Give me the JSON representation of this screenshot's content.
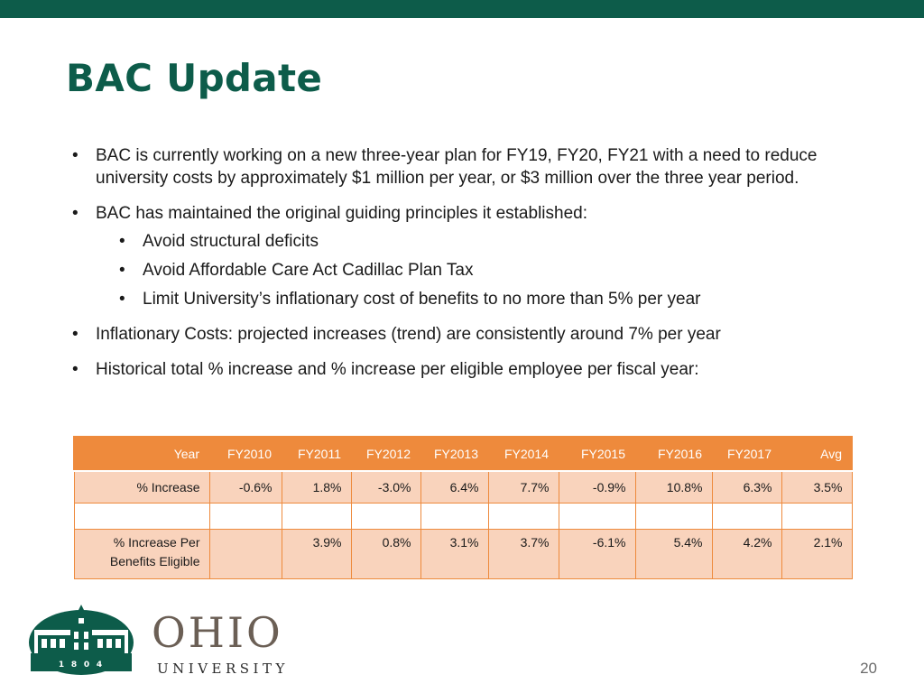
{
  "slide": {
    "title": "BAC Update",
    "page_number": "20",
    "brand_color": "#0d5c4a",
    "accent_color": "#ee8a3c"
  },
  "bullets": [
    "BAC is currently working on a new three-year plan for FY19, FY20, FY21 with a need to reduce university costs by approximately $1 million per year, or $3 million over the three year period.",
    "BAC has maintained the original guiding principles it established:",
    "Inflationary Costs: projected increases (trend) are consistently around 7% per year",
    "Historical total % increase and % increase per eligible employee per fiscal year:"
  ],
  "sub_bullets": [
    "Avoid structural deficits",
    "Avoid Affordable Care Act Cadillac Plan Tax",
    "Limit University’s inflationary cost of benefits to no more than 5% per year"
  ],
  "table": {
    "headers": [
      "Year",
      "FY2010",
      "FY2011",
      "FY2012",
      "FY2013",
      "FY2014",
      "FY2015",
      "FY2016",
      "FY2017",
      "Avg"
    ],
    "row_increase": [
      "% Increase",
      "-0.6%",
      "1.8%",
      "-3.0%",
      "6.4%",
      "7.7%",
      "-0.9%",
      "10.8%",
      "6.3%",
      "3.5%"
    ],
    "row_blank": [
      "",
      "",
      "",
      "",
      "",
      "",
      "",
      "",
      "",
      ""
    ],
    "row_per_eligible": [
      "% Increase Per Benefits Eligible",
      "",
      "3.9%",
      "0.8%",
      "3.1%",
      "3.7%",
      "-6.1%",
      "5.4%",
      "4.2%",
      "2.1%"
    ]
  },
  "logo": {
    "word": "OHIO",
    "subword": "UNIVERSITY",
    "year_digits": [
      "1",
      "8",
      "0",
      "4"
    ],
    "icon": "ohio-university-building-seal"
  }
}
